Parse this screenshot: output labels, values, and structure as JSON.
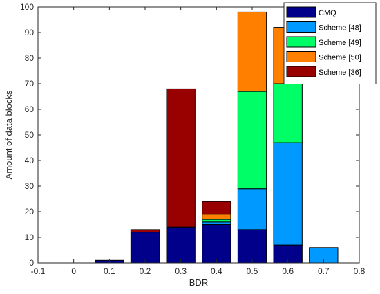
{
  "chart_data": {
    "type": "bar",
    "stacked": true,
    "xlabel": "BDR",
    "ylabel": "Amount of data blocks",
    "xlim": [
      -0.1,
      0.8
    ],
    "ylim": [
      0,
      100
    ],
    "xticks": [
      "-0.1",
      "0",
      "0.1",
      "0.2",
      "0.3",
      "0.4",
      "0.5",
      "0.6",
      "0.7",
      "0.8"
    ],
    "yticks": [
      "0",
      "10",
      "20",
      "30",
      "40",
      "50",
      "60",
      "70",
      "80",
      "90",
      "100"
    ],
    "grid": false,
    "legend_position": "top-right",
    "x": [
      0.1,
      0.2,
      0.3,
      0.4,
      0.5,
      0.6,
      0.7
    ],
    "series": [
      {
        "name": "CMQ",
        "color": "#00008B",
        "values": [
          1,
          12,
          14,
          15,
          13,
          7,
          0
        ]
      },
      {
        "name": "Scheme [48]",
        "color": "#0099FF",
        "values": [
          0,
          0,
          0,
          1,
          16,
          40,
          6
        ]
      },
      {
        "name": "Scheme [49]",
        "color": "#00FF66",
        "values": [
          0,
          0,
          0,
          1,
          38,
          23,
          0
        ]
      },
      {
        "name": "Scheme [50]",
        "color": "#FF7F00",
        "values": [
          0,
          0,
          0,
          2,
          31,
          22,
          0
        ]
      },
      {
        "name": "Scheme [36]",
        "color": "#990000",
        "values": [
          0,
          1,
          54,
          5,
          0,
          0,
          0
        ]
      }
    ]
  }
}
